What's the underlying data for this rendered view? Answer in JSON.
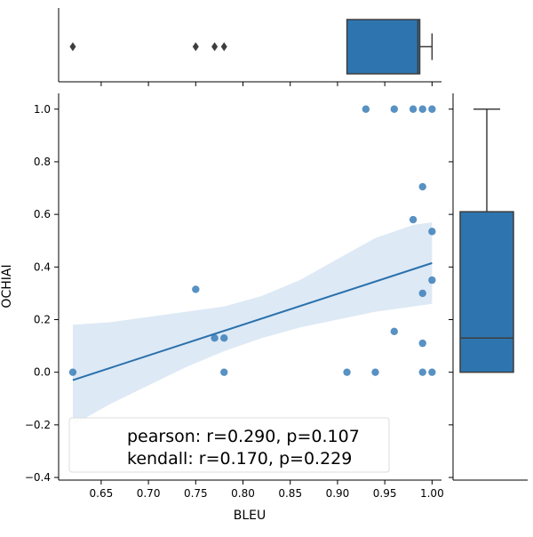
{
  "chart_data": {
    "type": "scatter",
    "xlabel": "BLEU",
    "ylabel": "OCHIAI",
    "xlim": [
      0.605,
      1.01
    ],
    "ylim": [
      -0.41,
      1.06
    ],
    "x_ticks": [
      "0.65",
      "0.70",
      "0.75",
      "0.80",
      "0.85",
      "0.90",
      "0.95",
      "1.00"
    ],
    "y_ticks": [
      "−0.4",
      "−0.2",
      "0.0",
      "0.2",
      "0.4",
      "0.6",
      "0.8",
      "1.0"
    ],
    "points": [
      {
        "x": 0.62,
        "y": 0.0
      },
      {
        "x": 0.75,
        "y": 0.315
      },
      {
        "x": 0.77,
        "y": 0.13
      },
      {
        "x": 0.78,
        "y": 0.13
      },
      {
        "x": 0.78,
        "y": 0.0
      },
      {
        "x": 0.91,
        "y": 0.0
      },
      {
        "x": 0.94,
        "y": 0.0
      },
      {
        "x": 0.93,
        "y": 1.0
      },
      {
        "x": 0.96,
        "y": 1.0
      },
      {
        "x": 0.98,
        "y": 1.0
      },
      {
        "x": 0.99,
        "y": 1.0
      },
      {
        "x": 1.0,
        "y": 1.0
      },
      {
        "x": 0.99,
        "y": 0.705
      },
      {
        "x": 0.98,
        "y": 0.58
      },
      {
        "x": 1.0,
        "y": 0.535
      },
      {
        "x": 1.0,
        "y": 0.35
      },
      {
        "x": 0.99,
        "y": 0.3
      },
      {
        "x": 0.96,
        "y": 0.155
      },
      {
        "x": 0.99,
        "y": 0.11
      },
      {
        "x": 0.99,
        "y": 0.0
      },
      {
        "x": 1.0,
        "y": 0.0
      }
    ],
    "regression": {
      "x": [
        0.62,
        1.0
      ],
      "y": [
        -0.03,
        0.415
      ]
    },
    "ci_band": {
      "x": [
        0.62,
        0.66,
        0.7,
        0.74,
        0.78,
        0.82,
        0.86,
        0.9,
        0.94,
        0.98,
        1.0
      ],
      "lower": [
        -0.2,
        -0.12,
        -0.05,
        0.02,
        0.08,
        0.13,
        0.17,
        0.2,
        0.23,
        0.25,
        0.26
      ],
      "upper": [
        0.18,
        0.19,
        0.21,
        0.23,
        0.25,
        0.29,
        0.35,
        0.43,
        0.51,
        0.56,
        0.57
      ]
    },
    "top_box": {
      "q1": 0.91,
      "median": 0.985,
      "q3": 0.987,
      "whisker_low": 0.91,
      "whisker_high": 1.0,
      "outliers": [
        0.62,
        0.75,
        0.77,
        0.78
      ]
    },
    "right_box": {
      "q1": 0.0,
      "median": 0.13,
      "q3": 0.61,
      "whisker_low": 0.0,
      "whisker_high": 1.0
    },
    "annotation": [
      "pearson: r=0.290, p=0.107",
      "kendall: r=0.170, p=0.229"
    ],
    "colors": {
      "points": "#3b7eb8",
      "line": "#2a71ad",
      "band": "#d2e2f1",
      "box": "#2e75b0"
    }
  }
}
